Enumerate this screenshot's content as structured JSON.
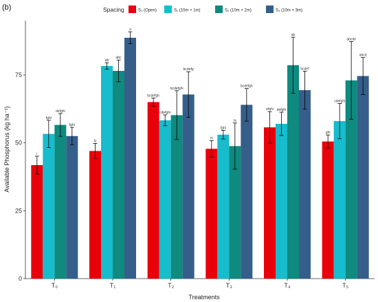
{
  "panel_label": "(b)",
  "colors": {
    "open": "#e8000b",
    "s1": "#17bccd",
    "s2": "#0e8a7f",
    "s3": "#355f8a",
    "axis": "#333333",
    "errorbar": "#000000"
  },
  "chart_data": {
    "type": "bar",
    "xlabel": "Treatments",
    "ylabel": "Available Phosphorus (kg ha⁻¹)",
    "ylim": [
      0,
      95
    ],
    "yticks": [
      0,
      25,
      50,
      75
    ],
    "grid": false,
    "legend_position": "top",
    "legend_title": "Spacing",
    "categories": [
      "T₀",
      "T₁",
      "T₂",
      "T₃",
      "T₄",
      "T₅"
    ],
    "series": [
      {
        "name": "S₀ (Open)",
        "color_key": "open",
        "values": [
          41.8,
          47.0,
          65.0,
          47.8,
          55.7,
          50.5
        ],
        "errors": [
          3.3,
          2.8,
          1.5,
          3.0,
          5.8,
          2.4
        ],
        "labels": [
          "i",
          "hi",
          "bcdefgh",
          "hi",
          "efghi",
          "ghi"
        ]
      },
      {
        "name": "S₁ (10m × 1m)",
        "color_key": "s1",
        "values": [
          53.3,
          78.3,
          58.3,
          53.0,
          57.0,
          58.0
        ],
        "errors": [
          5.0,
          1.2,
          2.0,
          1.6,
          4.3,
          6.5
        ],
        "labels": [
          "fghi",
          "ab",
          "cdefghi",
          "fghi",
          "defghi",
          "cdefghi"
        ]
      },
      {
        "name": "S₂ (10m × 2m)",
        "color_key": "s2",
        "values": [
          56.6,
          76.5,
          60.2,
          48.8,
          78.6,
          73.0
        ],
        "errors": [
          4.2,
          4.0,
          9.0,
          8.5,
          10.3,
          14.3
        ],
        "labels": [
          "defghi",
          "abc",
          "bcdefghi",
          "hi",
          "ab",
          "abcde"
        ]
      },
      {
        "name": "S₃ (10m × 3m)",
        "color_key": "s3",
        "values": [
          52.5,
          88.7,
          67.8,
          64.0,
          69.4,
          74.6
        ],
        "errors": [
          3.2,
          2.2,
          8.4,
          6.0,
          7.0,
          6.8
        ],
        "labels": [
          "fghi",
          "a",
          "bcdefg",
          "bcdefgh",
          "bcdef",
          "abcd"
        ]
      }
    ]
  }
}
